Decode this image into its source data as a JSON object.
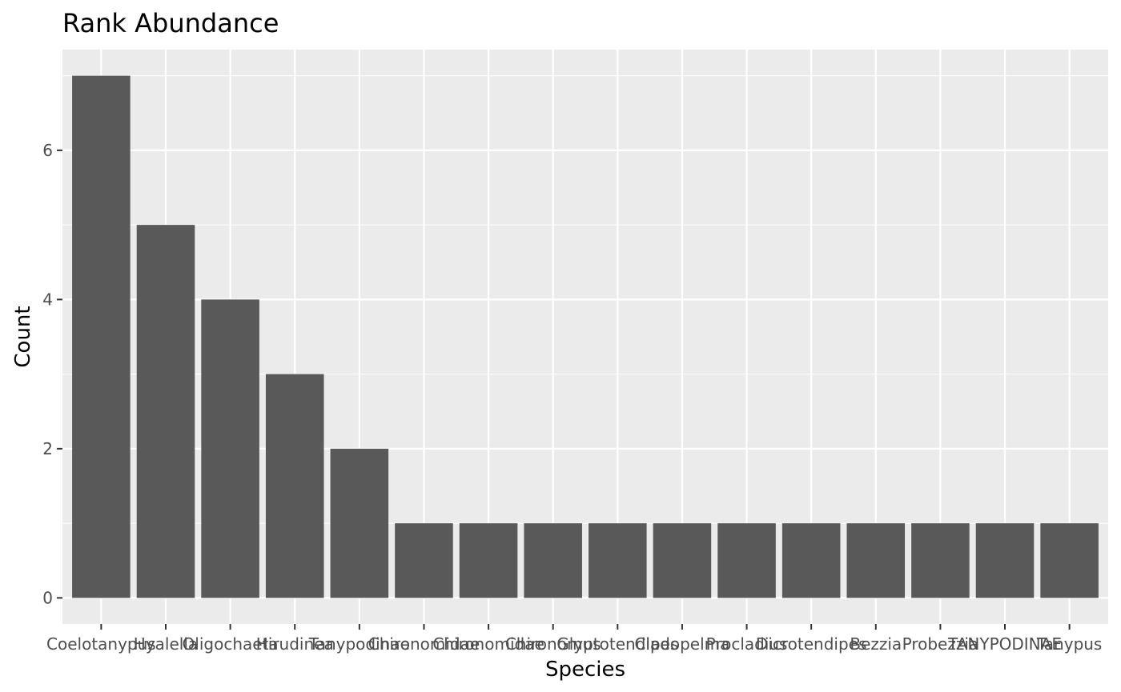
{
  "chart_data": {
    "type": "bar",
    "title": "Rank Abundance",
    "xlabel": "Species",
    "ylabel": "Count",
    "categories": [
      "Coelotanypus",
      "Hyalella",
      "Oligochaeta",
      "Hirudinea",
      "Tanypodinae",
      "Chironomidae",
      "Chironomidae",
      "Chironomus",
      "Glyptotendipes",
      "Cladopelma",
      "Procladius",
      "Dicrotendipes",
      "Bezzia",
      "Probezzia",
      "TANYPODINAE",
      "Tanypus"
    ],
    "values": [
      7,
      5,
      4,
      3,
      2,
      1,
      1,
      1,
      1,
      1,
      1,
      1,
      1,
      1,
      1,
      1
    ],
    "ylim": [
      -0.35,
      7.35
    ],
    "yticks": [
      0,
      2,
      4,
      6
    ],
    "grid": true,
    "colors": {
      "bar": "#595959",
      "panel": "#ebebeb",
      "grid": "#ffffff"
    }
  }
}
